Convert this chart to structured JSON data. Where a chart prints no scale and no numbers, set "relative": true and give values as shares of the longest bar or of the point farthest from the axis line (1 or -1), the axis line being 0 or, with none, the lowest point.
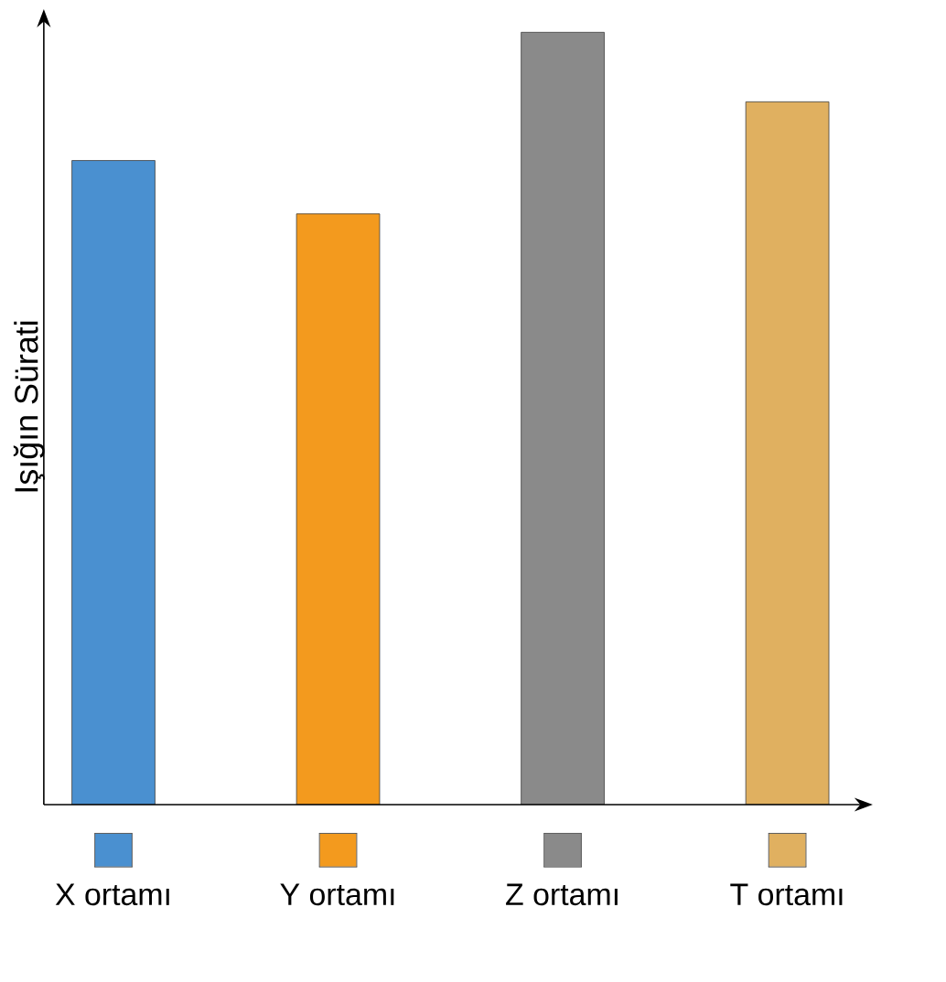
{
  "chart_data": {
    "type": "bar",
    "relative": true,
    "ylabel": "Işığın Sürati",
    "categories": [
      "X ortamı",
      "Y ortamı",
      "Z ortamı",
      "T ortamı"
    ],
    "values": [
      0.834,
      0.765,
      1,
      0.91
    ],
    "colors": [
      "#4a90d0",
      "#f39a1e",
      "#8a8a8a",
      "#e0b060"
    ]
  }
}
